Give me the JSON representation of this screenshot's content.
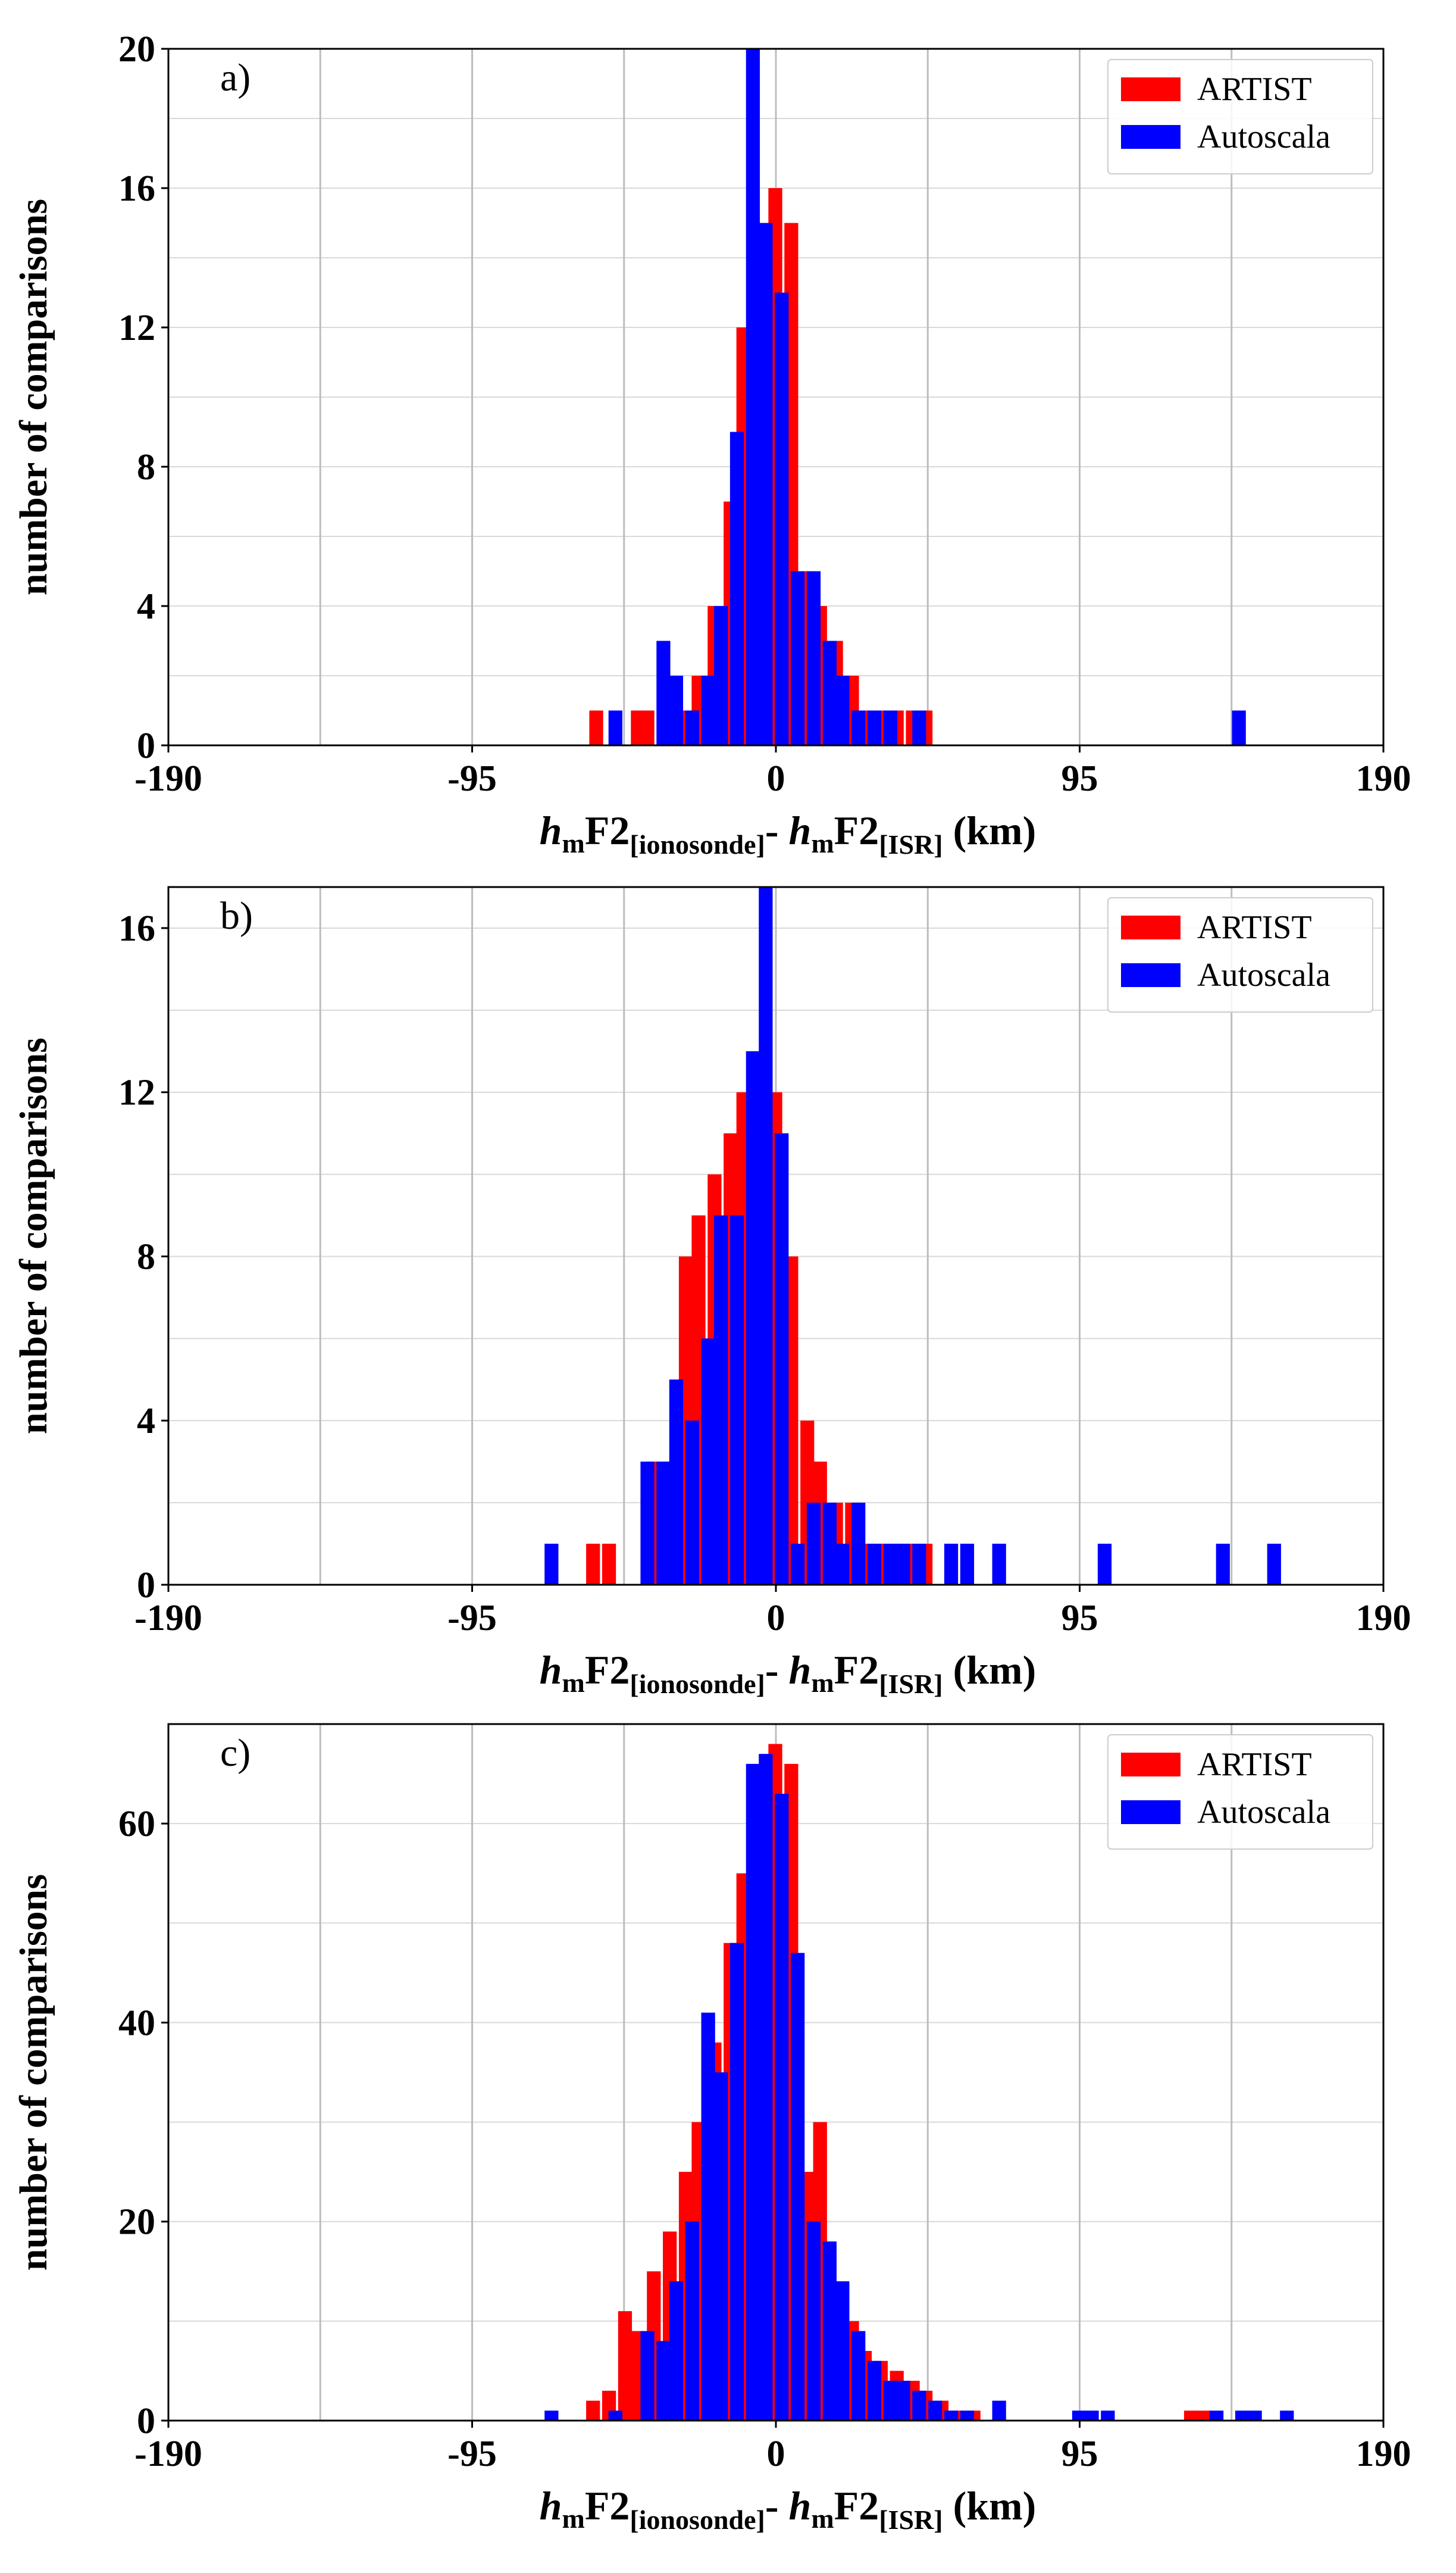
{
  "chart_data": [
    {
      "type": "bar",
      "panel_label": "a)",
      "title": "",
      "xlabel": {
        "h1": "h",
        "m1": "m",
        "f1": "F2",
        "s1": "[ionosonde]",
        "dash": "- ",
        "h2": "h",
        "m2": "m",
        "f2": "F2",
        "s2": "[ISR]",
        "units": " (km)"
      },
      "ylabel": "number of comparisons",
      "xlim": [
        -190,
        190
      ],
      "ylim": [
        0,
        20
      ],
      "xticks": [
        -190,
        -95,
        0,
        95,
        190
      ],
      "xtick_labels": [
        "-190",
        "-95",
        "0",
        "95",
        "190"
      ],
      "yticks": [
        0,
        4,
        8,
        12,
        16,
        20
      ],
      "ytick_labels": [
        "0",
        "4",
        "8",
        "12",
        "16",
        "20"
      ],
      "bin_width": 4.7,
      "legend": {
        "position": "top-right",
        "entries": [
          "ARTIST",
          "Autoscala"
        ]
      },
      "series": [
        {
          "name": "ARTIST",
          "color": "#ff0000",
          "x": [
            -56,
            -43,
            -40,
            -33,
            -28,
            -24,
            -19,
            -14,
            -10,
            -5,
            0,
            5,
            10,
            14,
            19,
            24,
            28,
            33,
            38,
            43,
            47
          ],
          "values": [
            1,
            1,
            1,
            1,
            1,
            2,
            4,
            7,
            12,
            14,
            16,
            15,
            5,
            4,
            3,
            2,
            1,
            1,
            1,
            1,
            1
          ]
        },
        {
          "name": "Autoscala",
          "color": "#0000ff",
          "x": [
            -50,
            -35,
            -31,
            -26,
            -21,
            -17,
            -12,
            -7,
            -3,
            2,
            7,
            12,
            17,
            21,
            26,
            31,
            36,
            45,
            145
          ],
          "values": [
            1,
            3,
            2,
            1,
            2,
            4,
            9,
            20,
            15,
            13,
            5,
            5,
            3,
            2,
            1,
            1,
            1,
            1,
            1
          ]
        }
      ]
    },
    {
      "type": "bar",
      "panel_label": "b)",
      "title": "",
      "xlabel": {
        "h1": "h",
        "m1": "m",
        "f1": "F2",
        "s1": "[ionosonde]",
        "dash": "- ",
        "h2": "h",
        "m2": "m",
        "f2": "F2",
        "s2": "[ISR]",
        "units": " (km)"
      },
      "ylabel": "number of comparisons",
      "xlim": [
        -190,
        190
      ],
      "ylim": [
        0,
        17
      ],
      "xticks": [
        -190,
        -95,
        0,
        95,
        190
      ],
      "xtick_labels": [
        "-190",
        "-95",
        "0",
        "95",
        "190"
      ],
      "yticks": [
        0,
        4,
        8,
        12,
        16
      ],
      "ytick_labels": [
        "0",
        "4",
        "8",
        "12",
        "16"
      ],
      "bin_width": 4.7,
      "legend": {
        "position": "top-right",
        "entries": [
          "ARTIST",
          "Autoscala"
        ]
      },
      "series": [
        {
          "name": "ARTIST",
          "color": "#ff0000",
          "x": [
            -57,
            -52,
            -38,
            -33,
            -28,
            -24,
            -19,
            -14,
            -10,
            -5,
            0,
            5,
            10,
            14,
            19,
            24,
            28,
            33,
            38,
            43,
            47
          ],
          "values": [
            1,
            1,
            3,
            3,
            8,
            9,
            10,
            11,
            12,
            11,
            12,
            8,
            4,
            3,
            2,
            2,
            1,
            1,
            1,
            1,
            1
          ]
        },
        {
          "name": "Autoscala",
          "color": "#0000ff",
          "x": [
            -70,
            -40,
            -35,
            -31,
            -26,
            -21,
            -17,
            -12,
            -7,
            -3,
            2,
            7,
            12,
            17,
            21,
            26,
            31,
            36,
            40,
            45,
            55,
            60,
            70,
            103,
            140,
            156
          ],
          "values": [
            1,
            3,
            3,
            5,
            4,
            6,
            9,
            9,
            13,
            17,
            11,
            1,
            2,
            2,
            1,
            2,
            1,
            1,
            1,
            1,
            1,
            1,
            1,
            1,
            1,
            1
          ]
        }
      ]
    },
    {
      "type": "bar",
      "panel_label": "c)",
      "title": "",
      "xlabel": {
        "h1": "h",
        "m1": "m",
        "f1": "F2",
        "s1": "[ionosonde]",
        "dash": "- ",
        "h2": "h",
        "m2": "m",
        "f2": "F2",
        "s2": "[ISR]",
        "units": " (km)"
      },
      "ylabel": "number of comparisons",
      "xlim": [
        -190,
        190
      ],
      "ylim": [
        0,
        70
      ],
      "xticks": [
        -190,
        -95,
        0,
        95,
        190
      ],
      "xtick_labels": [
        "-190",
        "-95",
        "0",
        "95",
        "190"
      ],
      "yticks": [
        0,
        20,
        40,
        60
      ],
      "ytick_labels": [
        "0",
        "20",
        "40",
        "60"
      ],
      "bin_width": 4.7,
      "legend": {
        "position": "top-right",
        "entries": [
          "ARTIST",
          "Autoscala"
        ]
      },
      "series": [
        {
          "name": "ARTIST",
          "color": "#ff0000",
          "x": [
            -57,
            -52,
            -47,
            -43,
            -38,
            -33,
            -28,
            -24,
            -19,
            -14,
            -10,
            -5,
            0,
            5,
            10,
            14,
            19,
            24,
            28,
            33,
            38,
            43,
            47,
            52,
            57,
            62,
            130,
            134
          ],
          "values": [
            2,
            3,
            11,
            9,
            15,
            19,
            25,
            30,
            38,
            48,
            55,
            63,
            68,
            66,
            25,
            30,
            12,
            10,
            7,
            6,
            5,
            4,
            3,
            2,
            1,
            1,
            1,
            1
          ]
        },
        {
          "name": "Autoscala",
          "color": "#0000ff",
          "x": [
            -70,
            -50,
            -40,
            -35,
            -31,
            -26,
            -21,
            -17,
            -12,
            -7,
            -3,
            2,
            7,
            12,
            17,
            21,
            26,
            31,
            36,
            40,
            45,
            50,
            55,
            60,
            70,
            95,
            99,
            104,
            138,
            146,
            150,
            160
          ],
          "values": [
            1,
            1,
            9,
            8,
            14,
            20,
            41,
            35,
            48,
            66,
            67,
            63,
            47,
            20,
            18,
            14,
            9,
            6,
            4,
            4,
            3,
            2,
            1,
            1,
            2,
            1,
            1,
            1,
            1,
            1,
            1,
            1
          ]
        }
      ]
    }
  ]
}
